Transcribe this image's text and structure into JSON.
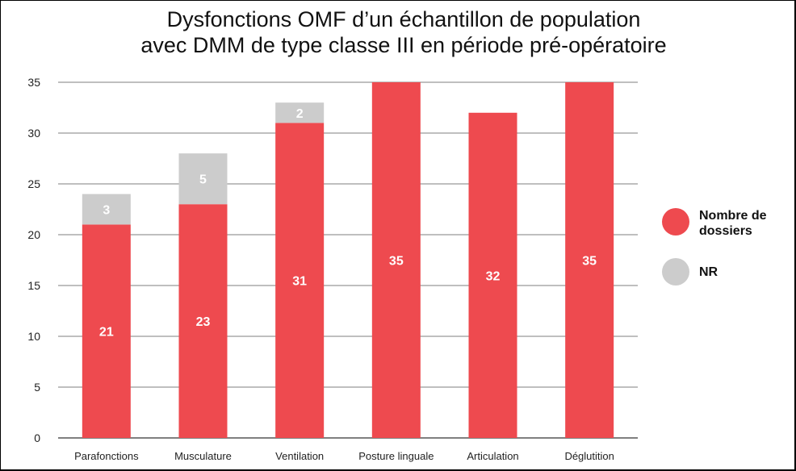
{
  "chart_data": {
    "type": "bar",
    "stacked": true,
    "title_lines": [
      "Dysfonctions OMF d’un échantillon de population",
      "avec DMM de type classe III en période pré-opératoire"
    ],
    "categories": [
      "Parafonctions",
      "Musculature",
      "Ventilation",
      "Posture linguale",
      "Articulation",
      "Déglutition"
    ],
    "series": [
      {
        "name": "Nombre de dossiers",
        "color": "#EE4A4F",
        "values": [
          21,
          23,
          31,
          35,
          32,
          35
        ]
      },
      {
        "name": "NR",
        "color": "#CCCCCC",
        "values": [
          3,
          5,
          2,
          0,
          0,
          0
        ]
      }
    ],
    "ylim": [
      0,
      35
    ],
    "yticks": [
      0,
      5,
      10,
      15,
      20,
      25,
      30,
      35
    ],
    "grid": true,
    "legend_position": "right"
  }
}
